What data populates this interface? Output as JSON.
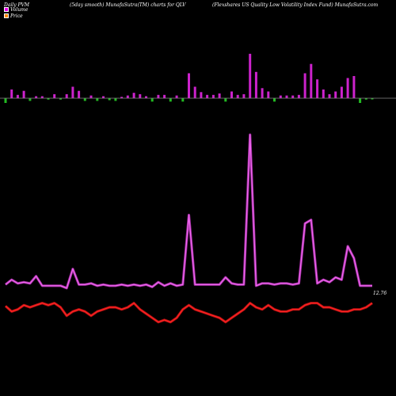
{
  "header": {
    "left": "Daily PVM",
    "center": "(5day smooth) MunafaSutra(TM) charts for QLV",
    "right": "(Flexshares US Quality Low  Volatility Index Fund) MunafaSutra.com"
  },
  "legend": [
    {
      "label": "Volume",
      "color": "#ee00ee"
    },
    {
      "label": "Price",
      "color": "#ff8800"
    }
  ],
  "colors": {
    "up": "#cc22cc",
    "down": "#22bb22",
    "pvm": "#ee66ee",
    "price": "#ff2222",
    "baseline": "#888888"
  },
  "chart_data": {
    "type": "line",
    "x": [
      1,
      2,
      3,
      4,
      5,
      6,
      7,
      8,
      9,
      10,
      11,
      12,
      13,
      14,
      15,
      16,
      17,
      18,
      19,
      20,
      21,
      22,
      23,
      24,
      25,
      26,
      27,
      28,
      29,
      30,
      31,
      32,
      33,
      34,
      35,
      36,
      37,
      38,
      39,
      40,
      41,
      42,
      43,
      44,
      45,
      46,
      47,
      48,
      49,
      50,
      51,
      52,
      53,
      54,
      55,
      56,
      57,
      58,
      59,
      60,
      61
    ],
    "series": [
      {
        "name": "Volume",
        "type": "bar",
        "values": [
          0.9,
          1.3,
          0.5,
          1.1,
          0.4,
          0.3,
          0.3,
          0.2,
          0.6,
          0.2,
          0.6,
          1.7,
          1.1,
          0.4,
          0.4,
          0.4,
          0.3,
          0.3,
          0.4,
          0.2,
          0.4,
          0.8,
          0.6,
          0.3,
          0.5,
          0.5,
          0.5,
          0.5,
          0.4,
          0.5,
          3.7,
          1.7,
          0.9,
          0.5,
          0.5,
          0.7,
          0.5,
          1.0,
          0.5,
          0.6,
          6.6,
          3.9,
          1.5,
          1.0,
          0.5,
          0.4,
          0.4,
          0.4,
          0.5,
          3.7,
          5.1,
          2.8,
          1.3,
          0.6,
          1.0,
          1.7,
          3.0,
          3.3,
          2.0,
          0.2,
          0.1
        ],
        "direction": [
          "d",
          "u",
          "u",
          "u",
          "d",
          "u",
          "u",
          "d",
          "u",
          "d",
          "u",
          "u",
          "u",
          "d",
          "u",
          "d",
          "u",
          "d",
          "d",
          "u",
          "u",
          "u",
          "u",
          "u",
          "d",
          "u",
          "u",
          "d",
          "u",
          "d",
          "u",
          "u",
          "u",
          "u",
          "u",
          "u",
          "d",
          "u",
          "u",
          "u",
          "u",
          "u",
          "u",
          "u",
          "d",
          "u",
          "u",
          "u",
          "u",
          "u",
          "u",
          "u",
          "u",
          "u",
          "u",
          "u",
          "u",
          "u",
          "d",
          "d",
          "d"
        ]
      },
      {
        "name": "PVM",
        "type": "line",
        "values": [
          15,
          19,
          16,
          17,
          16,
          22,
          14,
          14,
          14,
          14,
          12,
          28,
          15,
          15,
          16,
          14,
          15,
          14,
          14,
          15,
          14,
          15,
          14,
          15,
          13,
          17,
          14,
          16,
          14,
          15,
          73,
          15,
          15,
          15,
          15,
          15,
          21,
          16,
          15,
          15,
          140,
          14,
          16,
          16,
          15,
          16,
          16,
          15,
          16,
          66,
          69,
          16,
          19,
          17,
          21,
          19,
          47,
          37,
          14,
          14,
          14
        ]
      },
      {
        "name": "Price",
        "type": "line",
        "values": [
          12.76,
          12.5,
          12.6,
          12.8,
          12.7,
          12.8,
          12.9,
          12.8,
          12.9,
          12.7,
          12.3,
          12.5,
          12.6,
          12.5,
          12.3,
          12.5,
          12.6,
          12.7,
          12.7,
          12.6,
          12.7,
          12.9,
          12.6,
          12.4,
          12.2,
          12.0,
          12.1,
          12.0,
          12.2,
          12.6,
          12.8,
          12.6,
          12.5,
          12.4,
          12.3,
          12.2,
          12.0,
          12.2,
          12.4,
          12.6,
          12.9,
          12.7,
          12.6,
          12.8,
          12.6,
          12.5,
          12.5,
          12.6,
          12.6,
          12.8,
          12.9,
          12.9,
          12.7,
          12.7,
          12.6,
          12.5,
          12.5,
          12.6,
          12.6,
          12.7,
          12.9
        ]
      }
    ],
    "last_label": "12.76",
    "ylim_price": [
      11.5,
      14.5
    ],
    "ylim_pvm": [
      0,
      150
    ]
  }
}
